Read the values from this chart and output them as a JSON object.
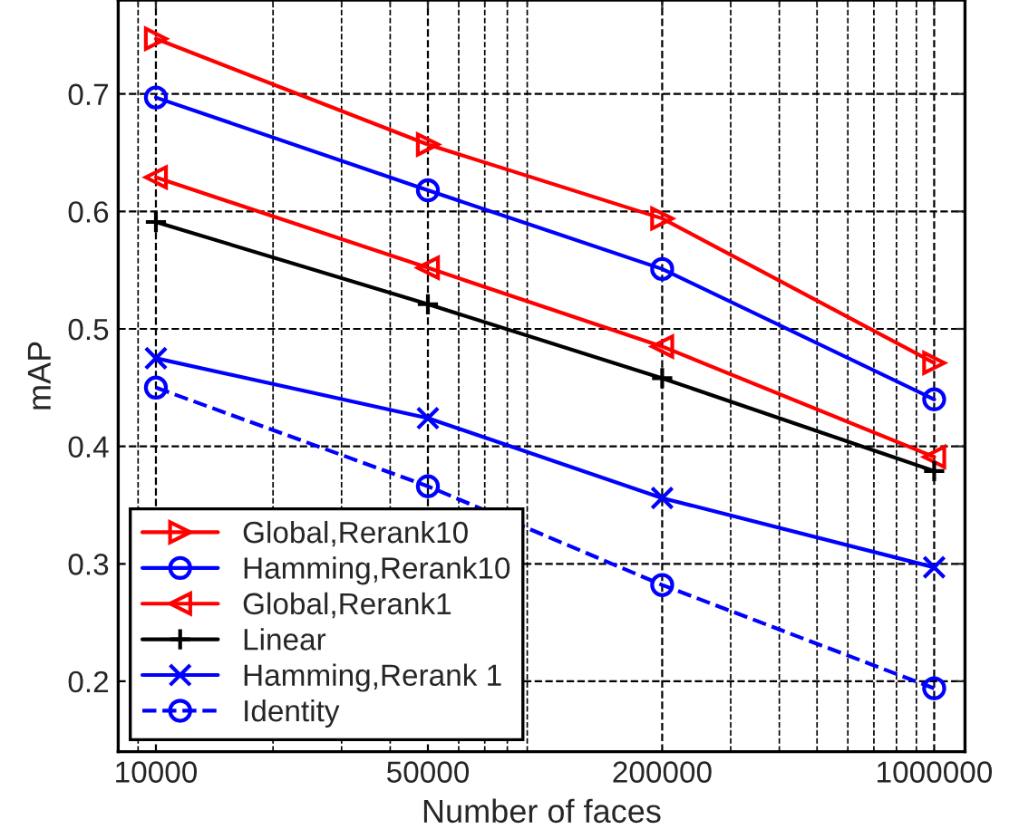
{
  "chart_data": {
    "type": "line",
    "xlabel": "Number of faces",
    "ylabel": "mAP",
    "x": [
      10000,
      50000,
      200000,
      1000000
    ],
    "series": [
      {
        "name": "Global,Rerank10",
        "color": "#ff0000",
        "marker": "triangle_right",
        "line_style": "solid",
        "values": [
          0.747,
          0.657,
          0.594,
          0.471
        ]
      },
      {
        "name": "Hamming,Rerank10",
        "color": "#0000ff",
        "marker": "circle",
        "line_style": "solid",
        "values": [
          0.697,
          0.618,
          0.551,
          0.44
        ]
      },
      {
        "name": "Global,Rerank1",
        "color": "#ff0000",
        "marker": "triangle_left",
        "line_style": "solid",
        "values": [
          0.629,
          0.552,
          0.485,
          0.391
        ]
      },
      {
        "name": "Linear",
        "color": "#000000",
        "marker": "plus",
        "line_style": "solid",
        "values": [
          0.591,
          0.521,
          0.458,
          0.379
        ]
      },
      {
        "name": "Hamming,Rerank 1",
        "color": "#0000ff",
        "marker": "cross",
        "line_style": "solid",
        "values": [
          0.475,
          0.424,
          0.356,
          0.297
        ]
      },
      {
        "name": "Identity",
        "color": "#0000ff",
        "marker": "circle",
        "line_style": "dashed",
        "values": [
          0.45,
          0.366,
          0.282,
          0.194
        ]
      }
    ],
    "log": "x",
    "xlim": [
      8000,
      1200000
    ],
    "xticks": [
      10000,
      50000,
      200000,
      1000000
    ],
    "ylim": [
      0.14,
      0.78
    ],
    "yticks": [
      0.2,
      0.3,
      0.4,
      0.5,
      0.6,
      0.7
    ],
    "grid": true,
    "legend": "bottom left"
  }
}
